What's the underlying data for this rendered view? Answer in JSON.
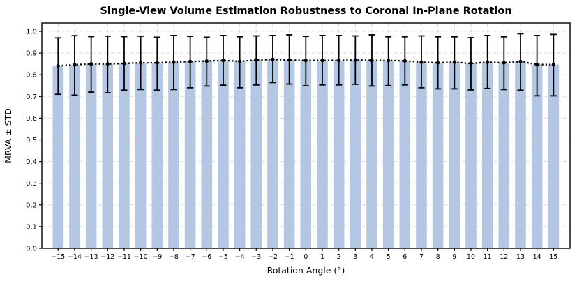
{
  "chart_data": {
    "type": "bar",
    "title": "Single-View Volume Estimation Robustness to Coronal In-Plane Rotation",
    "xlabel": "Rotation Angle (°)",
    "ylabel": "MRVA ± STD",
    "ylim": [
      0.0,
      1.0
    ],
    "grid": true,
    "legend_position": "none",
    "yticks": [
      0.0,
      0.1,
      0.2,
      0.3,
      0.4,
      0.5,
      0.6,
      0.7,
      0.8,
      0.9,
      1.0
    ],
    "ytick_labels": [
      "0.0",
      "0.1",
      "0.2",
      "0.3",
      "0.4",
      "0.5",
      "0.6",
      "0.7",
      "0.8",
      "0.9",
      "1.0"
    ],
    "categories": [
      -15,
      -14,
      -13,
      -12,
      -11,
      -10,
      -9,
      -8,
      -7,
      -6,
      -5,
      -4,
      -3,
      -2,
      -1,
      0,
      1,
      2,
      3,
      4,
      5,
      6,
      7,
      8,
      9,
      10,
      11,
      12,
      13,
      14,
      15
    ],
    "xtick_labels": [
      "−15",
      "−14",
      "−13",
      "−12",
      "−11",
      "−10",
      "−9",
      "−8",
      "−7",
      "−6",
      "−5",
      "−4",
      "−3",
      "−2",
      "−1",
      "0",
      "1",
      "2",
      "3",
      "4",
      "5",
      "6",
      "7",
      "8",
      "9",
      "10",
      "11",
      "12",
      "13",
      "14",
      "15"
    ],
    "series": [
      {
        "name": "MRVA mean (bar height / dotted line)",
        "values": [
          0.841,
          0.846,
          0.85,
          0.85,
          0.852,
          0.855,
          0.855,
          0.858,
          0.861,
          0.863,
          0.866,
          0.862,
          0.868,
          0.871,
          0.868,
          0.866,
          0.866,
          0.866,
          0.868,
          0.866,
          0.866,
          0.864,
          0.858,
          0.855,
          0.858,
          0.852,
          0.858,
          0.855,
          0.861,
          0.847,
          0.847
        ]
      },
      {
        "name": "mean − STD (lower error cap)",
        "values": [
          0.71,
          0.706,
          0.72,
          0.717,
          0.729,
          0.732,
          0.729,
          0.732,
          0.74,
          0.748,
          0.752,
          0.74,
          0.753,
          0.764,
          0.757,
          0.749,
          0.753,
          0.753,
          0.756,
          0.748,
          0.75,
          0.753,
          0.74,
          0.735,
          0.735,
          0.73,
          0.737,
          0.732,
          0.729,
          0.703,
          0.703
        ]
      },
      {
        "name": "mean + STD (upper error cap)",
        "values": [
          0.97,
          0.98,
          0.976,
          0.978,
          0.976,
          0.978,
          0.973,
          0.981,
          0.977,
          0.973,
          0.981,
          0.975,
          0.979,
          0.981,
          0.984,
          0.977,
          0.981,
          0.981,
          0.979,
          0.984,
          0.975,
          0.975,
          0.979,
          0.975,
          0.975,
          0.971,
          0.981,
          0.975,
          0.989,
          0.981,
          0.986
        ]
      }
    ],
    "overlay": "dotted black line with round markers through the mean of every bar; black error bars with caps",
    "colors": {
      "bar": "#b3c7e4",
      "error": "#000000",
      "mean_line": "#000000",
      "grid": "#c4c4c4",
      "frame": "#000000",
      "background": "#ffffff"
    }
  }
}
